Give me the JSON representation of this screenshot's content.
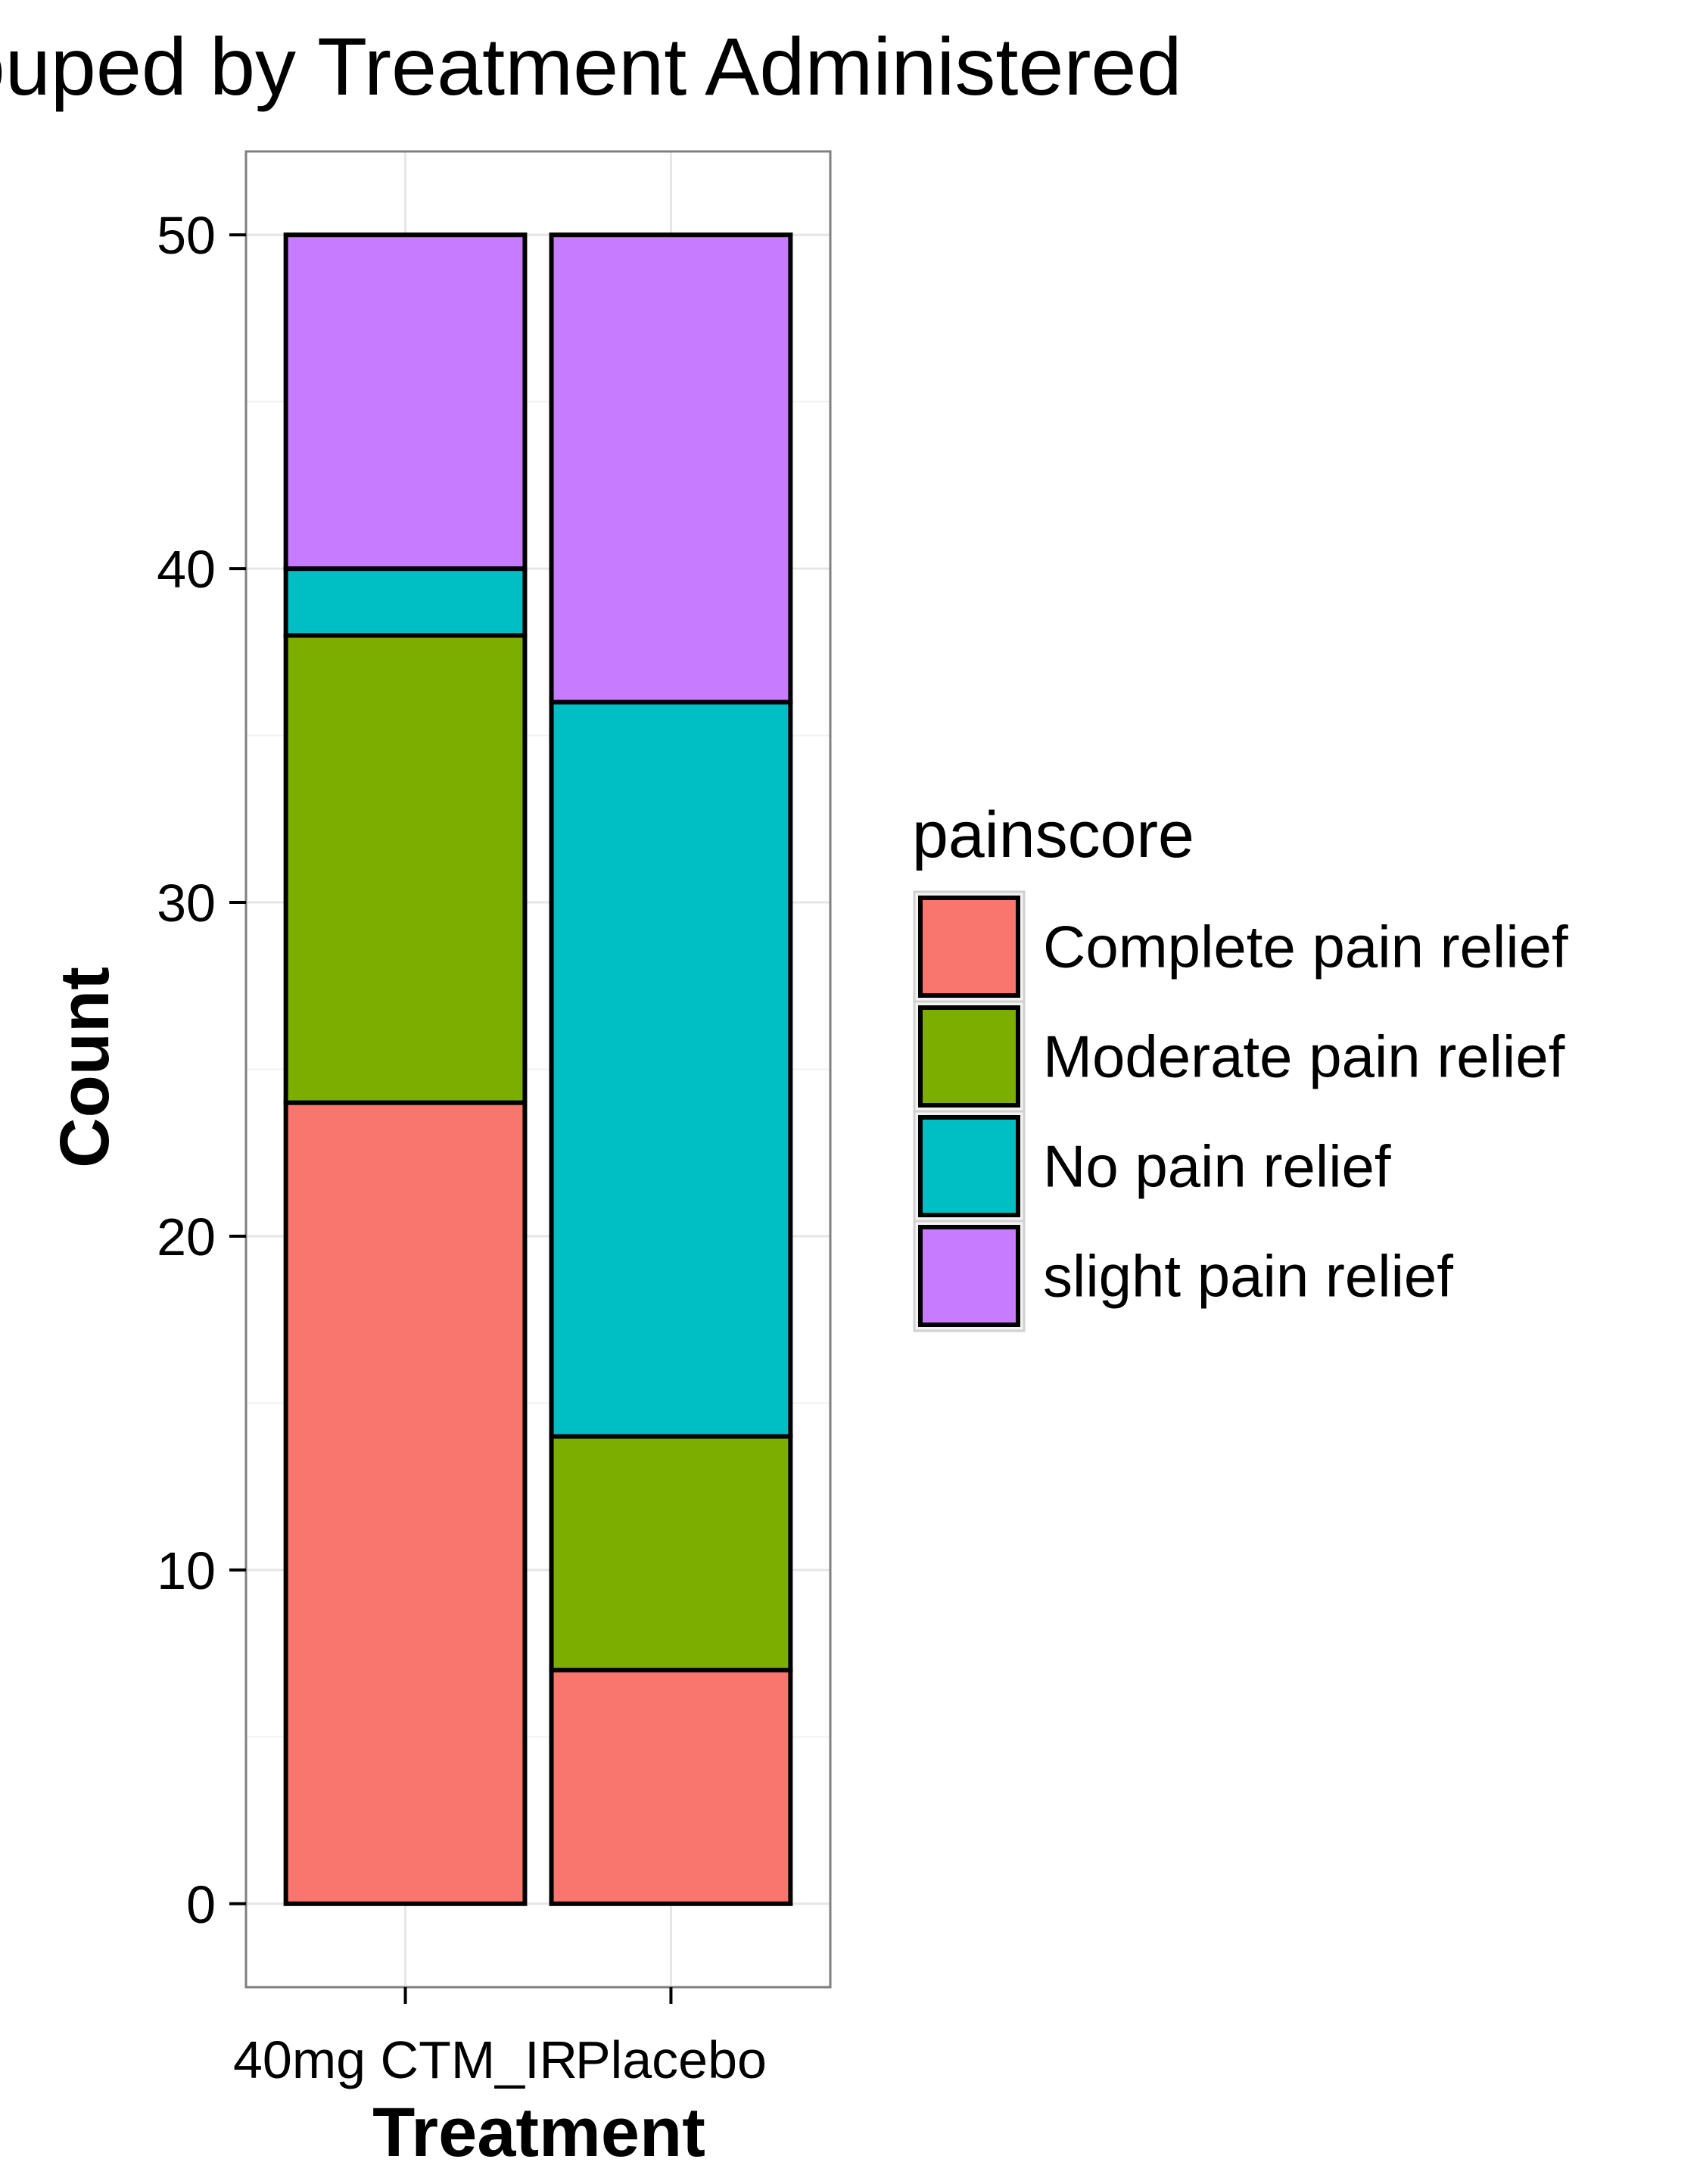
{
  "chart_data": {
    "type": "bar",
    "stacked": true,
    "title": "Count Grouped by Treatment Administered",
    "xlabel": "Treatment",
    "ylabel": "Count",
    "categories": [
      "40mg CTM_IR",
      "Placebo"
    ],
    "ylim": [
      -2.5,
      52.5
    ],
    "yticks": [
      0,
      10,
      20,
      30,
      40,
      50
    ],
    "grid": true,
    "legend": {
      "title": "painscore",
      "position": "right"
    },
    "series": [
      {
        "name": "Complete pain relief",
        "color": "#F8766D",
        "values": [
          24,
          7
        ]
      },
      {
        "name": "Moderate pain relief",
        "color": "#7CAE00",
        "values": [
          14,
          7
        ]
      },
      {
        "name": "No pain relief",
        "color": "#00BFC4",
        "values": [
          2,
          22
        ]
      },
      {
        "name": "slight pain relief",
        "color": "#C77CFF",
        "values": [
          10,
          14
        ]
      }
    ]
  }
}
